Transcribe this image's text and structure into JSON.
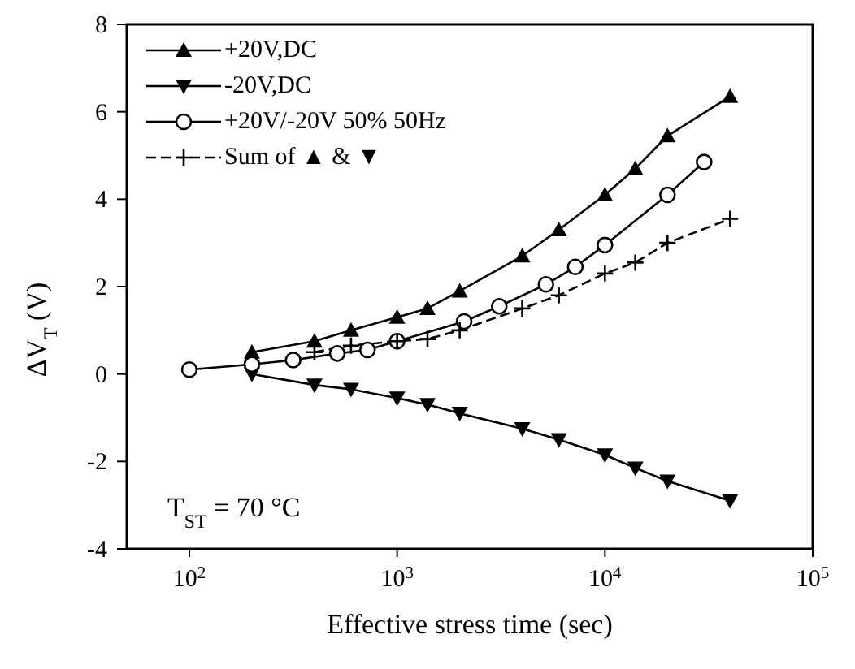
{
  "chart_data": {
    "type": "line",
    "xlabel": "Effective stress time (sec)",
    "ylabel": "ΔV$_{T}$ (V)",
    "log": "x",
    "xlim": [
      50,
      100000
    ],
    "xticks": [
      {
        "value": 100,
        "label": "10$^{2}$"
      },
      {
        "value": 1000,
        "label": "10$^{3}$"
      },
      {
        "value": 10000,
        "label": "10$^{4}$"
      },
      {
        "value": 100000,
        "label": "10$^{5}$"
      }
    ],
    "ylim": [
      -4,
      8
    ],
    "yticks": [
      -4,
      -2,
      0,
      2,
      4,
      6,
      8
    ],
    "grid": false,
    "legend": "top left",
    "annotations": [
      "T$_{ST}$ = 70 °C"
    ],
    "series": [
      {
        "name": "+20V,DC",
        "color": "#000000",
        "marker": "triangle",
        "line_style": "solid",
        "x": [
          200,
          400,
          600,
          1000,
          1400,
          2000,
          4000,
          6000,
          10000,
          14000,
          20000,
          40000
        ],
        "values": [
          0.5,
          0.75,
          1.0,
          1.3,
          1.5,
          1.9,
          2.7,
          3.3,
          4.1,
          4.7,
          5.45,
          6.35
        ]
      },
      {
        "name": "-20V,DC",
        "color": "#000000",
        "marker": "triangle-down",
        "line_style": "solid",
        "x": [
          200,
          400,
          600,
          1000,
          1400,
          2000,
          4000,
          6000,
          10000,
          14000,
          20000,
          40000
        ],
        "values": [
          0,
          -0.25,
          -0.35,
          -0.55,
          -0.7,
          -0.9,
          -1.25,
          -1.5,
          -1.85,
          -2.15,
          -2.45,
          -2.9
        ]
      },
      {
        "name": "+20V/-20V 50% 50Hz",
        "color": "#000000",
        "marker": "circle",
        "line_style": "solid",
        "x": [
          100,
          200,
          316,
          515,
          720,
          1000,
          2100,
          3100,
          5200,
          7200,
          10000,
          20000,
          30000
        ],
        "values": [
          0.1,
          0.22,
          0.32,
          0.47,
          0.55,
          0.75,
          1.2,
          1.55,
          2.05,
          2.45,
          2.95,
          4.1,
          4.85
        ]
      },
      {
        "name": "Sum of ▲ & ▼",
        "color": "#000000",
        "marker": "cross",
        "line_style": "dashed",
        "x": [
          400,
          600,
          1000,
          1400,
          2000,
          4000,
          6000,
          10000,
          14000,
          20000,
          40000
        ],
        "values": [
          0.5,
          0.65,
          0.75,
          0.8,
          1.0,
          1.5,
          1.8,
          2.3,
          2.55,
          3.0,
          3.55
        ]
      }
    ]
  }
}
